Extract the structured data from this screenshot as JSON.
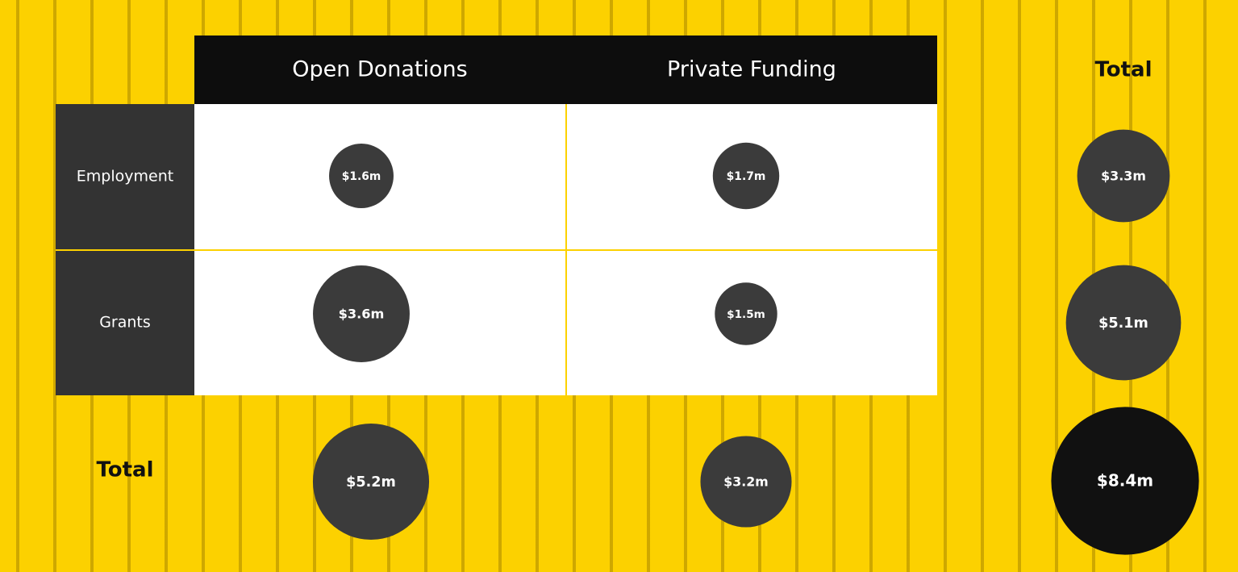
{
  "chart_data": {
    "type": "bubble_matrix",
    "columns": [
      "Open Donations",
      "Private Funding"
    ],
    "rows": [
      "Employment",
      "Grants"
    ],
    "values": [
      [
        1.6,
        1.7
      ],
      [
        3.6,
        1.5
      ]
    ],
    "value_labels": [
      [
        "$1.6m",
        "$1.7m"
      ],
      [
        "$3.6m",
        "$1.5m"
      ]
    ],
    "total_column_label": "Total",
    "row_totals": [
      3.3,
      5.1
    ],
    "row_total_labels": [
      "$3.3m",
      "$5.1m"
    ],
    "total_row_label": "Total",
    "column_totals": [
      5.2,
      3.2
    ],
    "column_total_labels": [
      "$5.2m",
      "$3.2m"
    ],
    "grand_total": 8.4,
    "grand_total_label": "$8.4m",
    "color": "#3b3b3b",
    "grand_total_color": "#111111"
  }
}
